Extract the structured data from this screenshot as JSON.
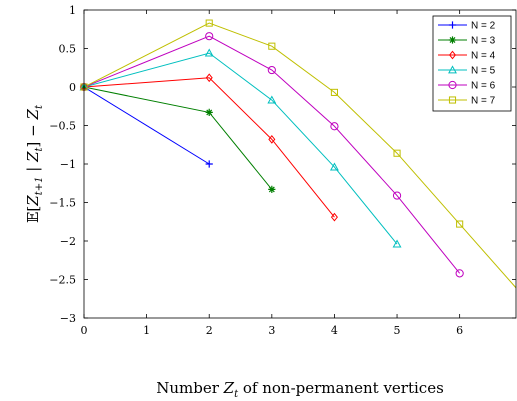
{
  "chart_data": {
    "type": "line",
    "xlabel": "Number Z_t of non-permanent vertices",
    "ylabel": "E[Z_{t+1} | Z_t] − Z_t",
    "xlim": [
      0,
      6.9
    ],
    "ylim": [
      -3,
      1
    ],
    "x_ticks": [
      "0",
      "1",
      "2",
      "3",
      "4",
      "5",
      "6"
    ],
    "y_ticks": [
      "1",
      "0.5",
      "0",
      "−0.5",
      "−1",
      "−1.5",
      "−2",
      "−2.5",
      "−3"
    ],
    "grid": false,
    "legend_position": "top-right",
    "series": [
      {
        "name": "N = 2",
        "color": "#0000ff",
        "marker": "plus",
        "x": [
          0,
          2
        ],
        "y": [
          0,
          -1
        ]
      },
      {
        "name": "N = 3",
        "color": "#007f00",
        "marker": "asterisk",
        "x": [
          0,
          2,
          3
        ],
        "y": [
          0,
          -0.33,
          -1.33
        ]
      },
      {
        "name": "N = 4",
        "color": "#ff0000",
        "marker": "diamond",
        "x": [
          0,
          2,
          3,
          4
        ],
        "y": [
          0,
          0.12,
          -0.68,
          -1.69
        ]
      },
      {
        "name": "N = 5",
        "color": "#00bfbf",
        "marker": "triangle",
        "x": [
          0,
          2,
          3,
          4,
          5
        ],
        "y": [
          0,
          0.44,
          -0.17,
          -1.04,
          -2.04
        ]
      },
      {
        "name": "N = 6",
        "color": "#bf00bf",
        "marker": "circle",
        "x": [
          0,
          2,
          3,
          4,
          5,
          6
        ],
        "y": [
          0,
          0.66,
          0.22,
          -0.51,
          -1.41,
          -2.42
        ]
      },
      {
        "name": "N = 7",
        "color": "#bfbf00",
        "marker": "square",
        "x": [
          0,
          2,
          3,
          4,
          5,
          6,
          7
        ],
        "y": [
          0,
          0.83,
          0.53,
          -0.07,
          -0.86,
          -1.78,
          -2.7
        ]
      }
    ]
  }
}
